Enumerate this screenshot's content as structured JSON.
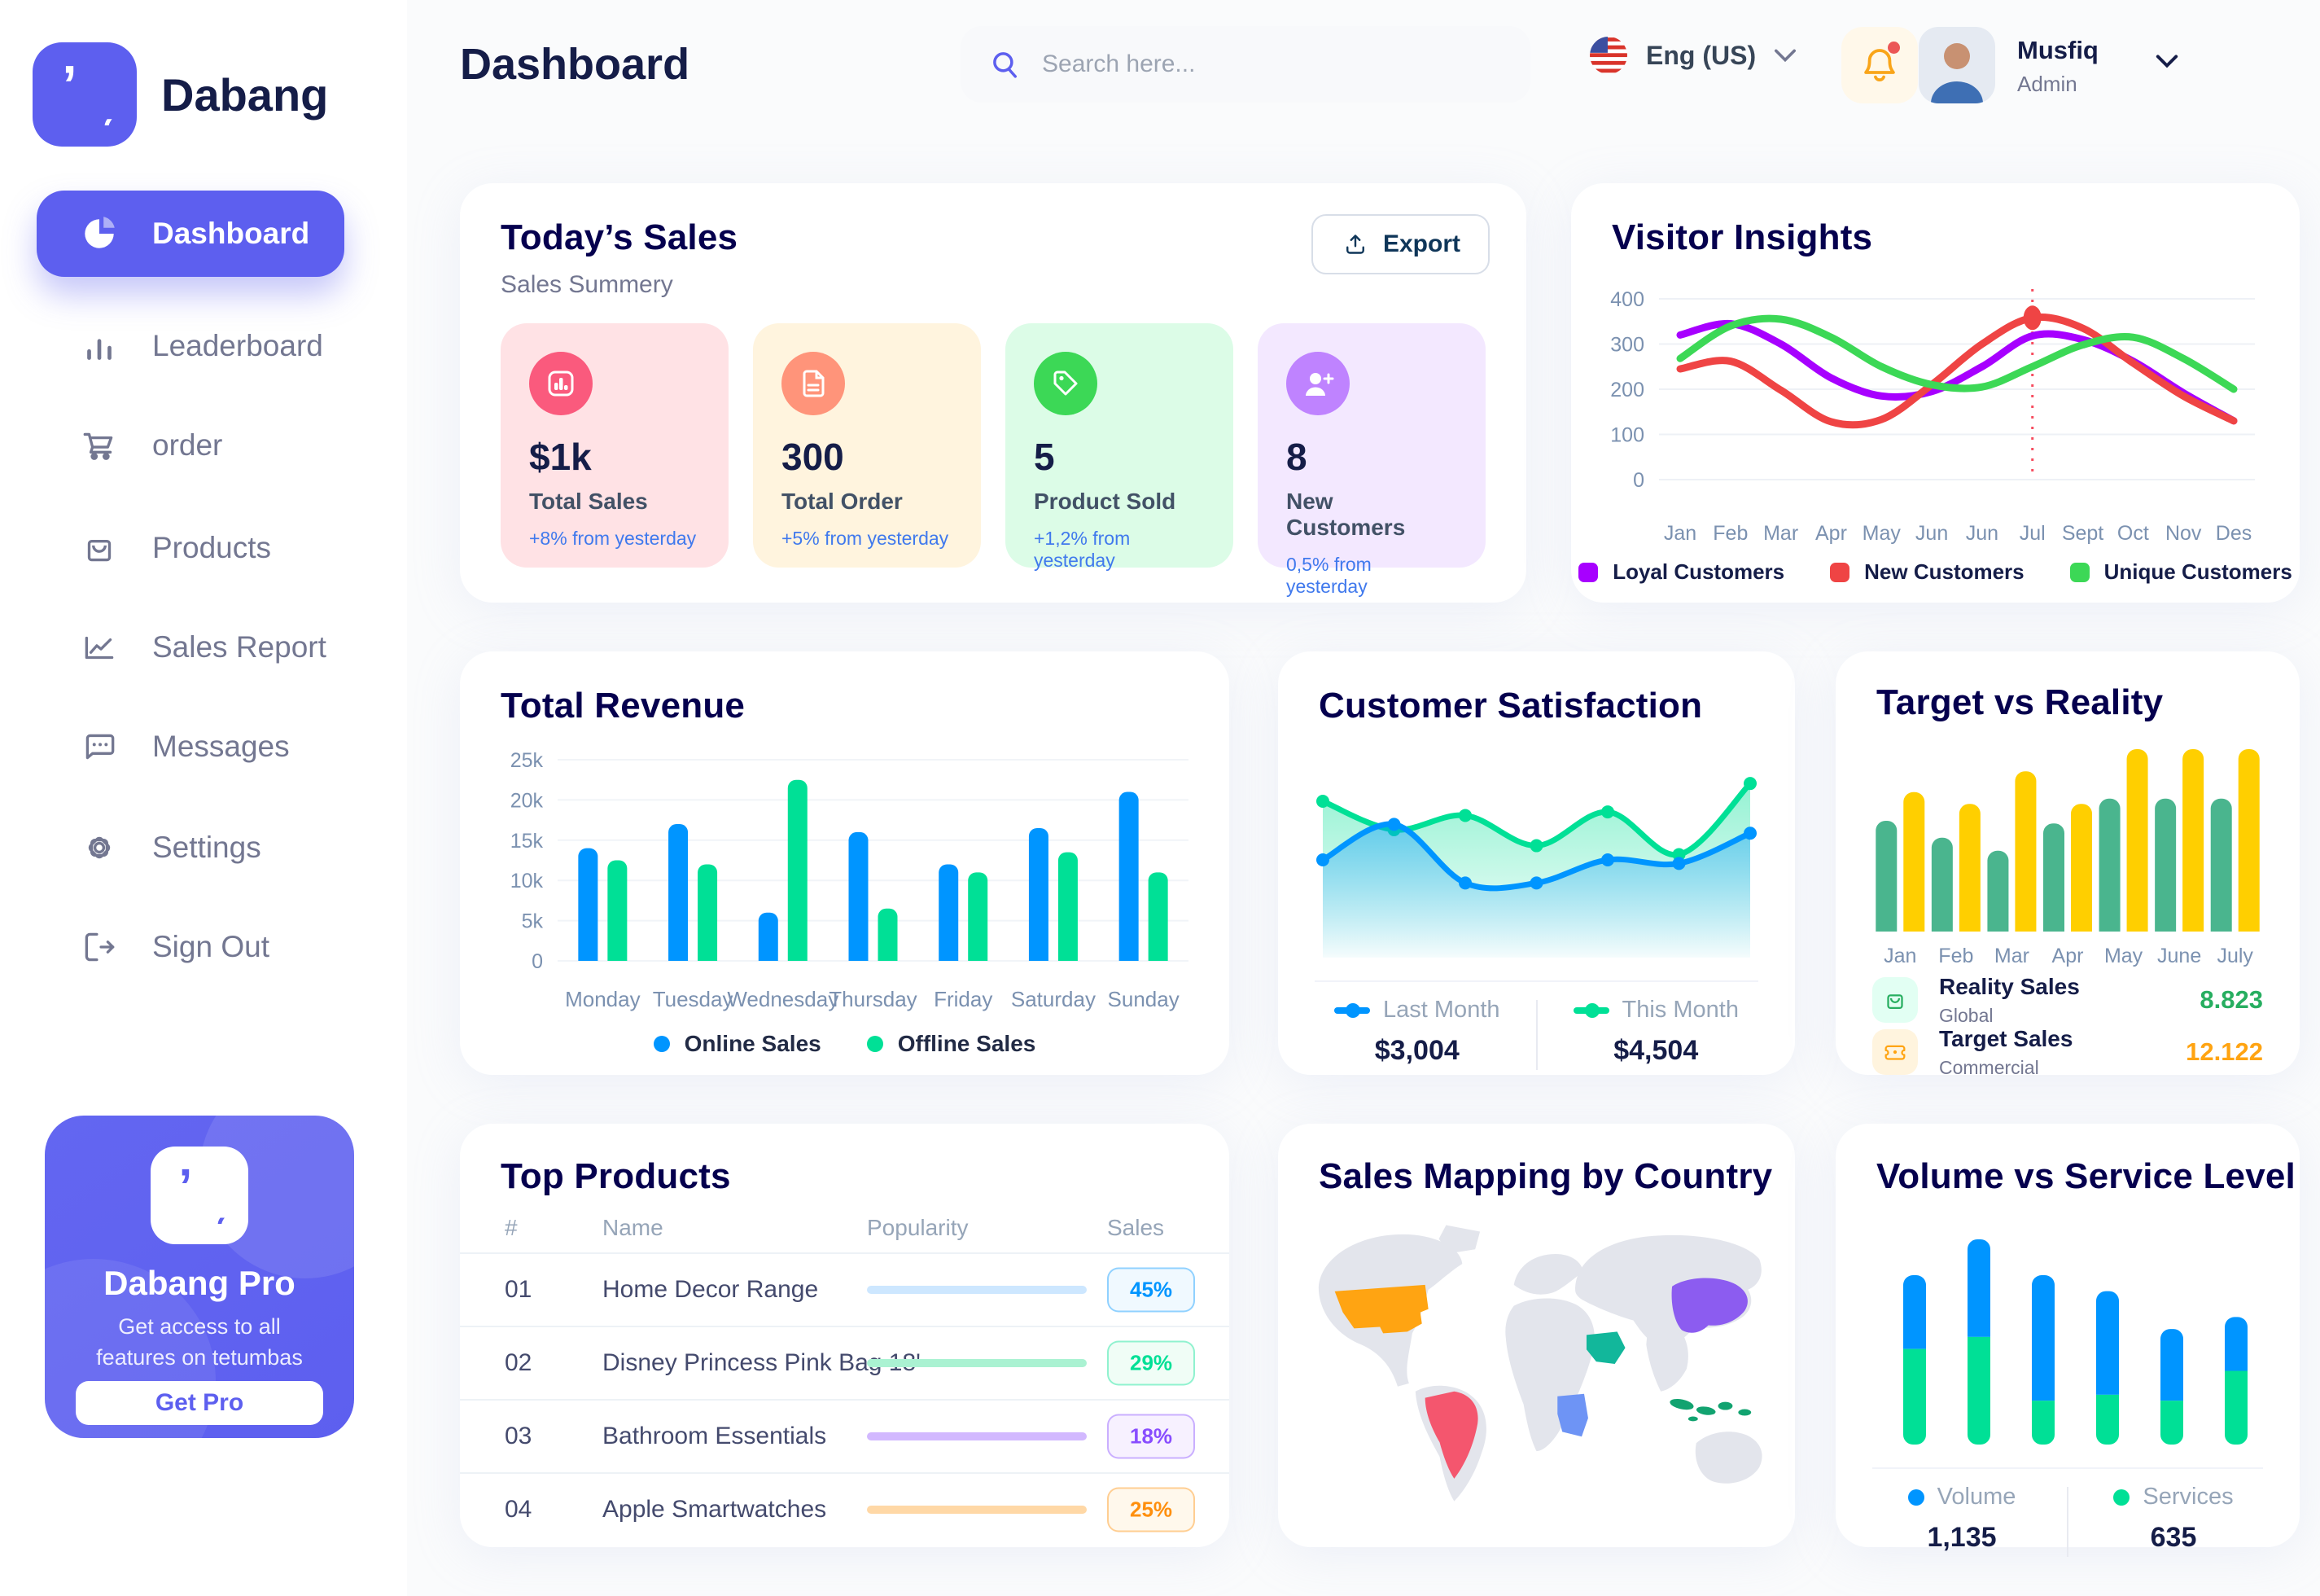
{
  "page": {
    "background": "#FAFBFC",
    "accent_color": "#5D5FEF"
  },
  "sidebar": {
    "logo_text": "Dabang",
    "items": [
      {
        "label": "Dashboard",
        "active": true
      },
      {
        "label": "Leaderboard"
      },
      {
        "label": "order"
      },
      {
        "label": "Products"
      },
      {
        "label": "Sales Report"
      },
      {
        "label": "Messages"
      },
      {
        "label": "Settings"
      },
      {
        "label": "Sign Out"
      }
    ],
    "pro": {
      "title": "Dabang Pro",
      "subtitle": "Get access to all features on tetumbas",
      "button_label": "Get Pro"
    }
  },
  "header": {
    "title": "Dashboard",
    "search_placeholder": "Search here...",
    "language": "Eng (US)",
    "user_name": "Musfiq",
    "user_role": "Admin",
    "bell_color": "#F9A51A",
    "notification_dot_color": "#EB5757"
  },
  "today_sales": {
    "title": "Today’s Sales",
    "subtitle": "Sales Summery",
    "export_label": "Export",
    "stats": [
      {
        "value": "$1k",
        "label": "Total Sales",
        "delta": "+8% from yesterday",
        "bg": "#FFE2E5",
        "icon_bg": "#FA5A7D"
      },
      {
        "value": "300",
        "label": "Total Order",
        "delta": "+5% from yesterday",
        "bg": "#FFF4DE",
        "icon_bg": "#FF947A"
      },
      {
        "value": "5",
        "label": "Product Sold",
        "delta": "+1,2% from yesterday",
        "bg": "#DCFCE7",
        "icon_bg": "#3CD856"
      },
      {
        "value": "8",
        "label": "New Customers",
        "delta": "0,5% from yesterday",
        "bg": "#F3E8FF",
        "icon_bg": "#BF83FF"
      }
    ]
  },
  "chart_data": [
    {
      "id": "visitor_insights",
      "type": "line",
      "title": "Visitor Insights",
      "x": [
        "Jan",
        "Feb",
        "Mar",
        "Apr",
        "May",
        "Jun",
        "Jun",
        "Jul",
        "Sept",
        "Oct",
        "Nov",
        "Des"
      ],
      "ylim": [
        0,
        400
      ],
      "yticks": [
        0,
        100,
        200,
        300,
        400
      ],
      "grid": true,
      "legend_position": "bottom",
      "series": [
        {
          "name": "Loyal Customers",
          "color": "#A700FF",
          "values": [
            320,
            345,
            300,
            225,
            185,
            195,
            250,
            318,
            310,
            262,
            192,
            130
          ]
        },
        {
          "name": "New Customers",
          "color": "#EF4444",
          "values": [
            245,
            262,
            198,
            128,
            133,
            210,
            300,
            358,
            335,
            258,
            185,
            130
          ]
        },
        {
          "name": "Unique Customers",
          "color": "#3CD856",
          "values": [
            268,
            340,
            355,
            315,
            250,
            210,
            205,
            250,
            298,
            315,
            268,
            200
          ]
        }
      ],
      "marker": {
        "series": 1,
        "index": 7,
        "guide_line": "dashed-red"
      }
    },
    {
      "id": "total_revenue",
      "type": "bar",
      "title": "Total Revenue",
      "categories": [
        "Monday",
        "Tuesday",
        "Wednesday",
        "Thursday",
        "Friday",
        "Saturday",
        "Sunday"
      ],
      "ylim": [
        0,
        25
      ],
      "yticks": [
        {
          "v": 0,
          "label": "0"
        },
        {
          "v": 5,
          "label": "5k"
        },
        {
          "v": 10,
          "label": "10k"
        },
        {
          "v": 15,
          "label": "15k"
        },
        {
          "v": 20,
          "label": "20k"
        },
        {
          "v": 25,
          "label": "25k"
        }
      ],
      "grid": true,
      "legend_position": "bottom",
      "series": [
        {
          "name": "Online Sales",
          "color": "#0095FF",
          "values": [
            14,
            17,
            6,
            16,
            12,
            16.5,
            21
          ]
        },
        {
          "name": "Offline Sales",
          "color": "#00E096",
          "values": [
            12.5,
            12,
            22.5,
            6.5,
            11,
            13.5,
            11
          ]
        }
      ]
    },
    {
      "id": "customer_satisfaction",
      "type": "area",
      "title": "Customer Satisfaction",
      "ylim": [
        0,
        110
      ],
      "grid": false,
      "legend_position": "bottom",
      "series": [
        {
          "name": "Last Month",
          "color": "#0095FF",
          "total": "$3,004",
          "values": [
            55,
            75,
            42,
            42,
            55,
            53,
            70
          ]
        },
        {
          "name": "This Month",
          "color": "#00E096",
          "total": "$4,504",
          "values": [
            88,
            72,
            80,
            63,
            82,
            58,
            98
          ]
        }
      ]
    },
    {
      "id": "target_vs_reality",
      "type": "bar",
      "title": "Target vs Reality",
      "categories": [
        "Jan",
        "Feb",
        "Mar",
        "Apr",
        "May",
        "June",
        "July"
      ],
      "ylim": [
        0,
        15
      ],
      "grid": false,
      "series": [
        {
          "name": "Reality Sales",
          "color": "#4AB58E",
          "values": [
            8.5,
            7.2,
            6.2,
            8.3,
            10.2,
            10.2,
            10.2
          ]
        },
        {
          "name": "Target Sales",
          "color": "#FFCF00",
          "values": [
            10.7,
            9.8,
            12.3,
            9.8,
            14,
            14,
            14
          ]
        }
      ],
      "legend_rows": [
        {
          "name": "Reality Sales",
          "sub": "Global",
          "value": "8.823",
          "value_color": "#27AE60",
          "icon_bg": "#E2FFF3",
          "icon_color": "#27AE60"
        },
        {
          "name": "Target Sales",
          "sub": "Commercial",
          "value": "12.122",
          "value_color": "#FFA412",
          "icon_bg": "#FFF4DE",
          "icon_color": "#FFA412"
        }
      ]
    },
    {
      "id": "volume_vs_service",
      "type": "stacked-bar",
      "title": "Volume vs Service Level",
      "legend_position": "bottom",
      "series": [
        {
          "name": "Volume",
          "color": "#0095FF",
          "total": "1,135",
          "values": [
            37,
            49,
            63,
            52,
            36,
            27
          ]
        },
        {
          "name": "Services",
          "color": "#00E096",
          "total": "635",
          "values": [
            48,
            54,
            22,
            25,
            22,
            37
          ]
        }
      ]
    }
  ],
  "top_products": {
    "title": "Top Products",
    "columns": [
      "#",
      "Name",
      "Popularity",
      "Sales"
    ],
    "rows": [
      {
        "num": "01",
        "name": "Home Decor Range",
        "percent": "45%",
        "fill": 78,
        "color": "#0095FF",
        "track": "#CDE7FF",
        "badge_bg": "#F0F9FF"
      },
      {
        "num": "02",
        "name": "Disney Princess Pink Bag 18'",
        "percent": "29%",
        "fill": 62,
        "color": "#00E096",
        "track": "#AAF2D2",
        "badge_bg": "#F0FDF6"
      },
      {
        "num": "03",
        "name": "Bathroom Essentials",
        "percent": "18%",
        "fill": 56,
        "color": "#884DFF",
        "track": "#D2B8FF",
        "badge_bg": "#F7F1FF"
      },
      {
        "num": "04",
        "name": "Apple Smartwatches",
        "percent": "25%",
        "fill": 33,
        "color": "#FF8F0D",
        "track": "#FFD8A6",
        "badge_bg": "#FFF8EC"
      }
    ]
  },
  "sales_map": {
    "title": "Sales Mapping by Country",
    "land_color": "#E3E5EC",
    "countries": [
      {
        "name": "United States",
        "color": "#FFA412"
      },
      {
        "name": "Brazil",
        "color": "#F4566E"
      },
      {
        "name": "Saudi Arabia",
        "color": "#12B79B"
      },
      {
        "name": "DR Congo",
        "color": "#6E94F5"
      },
      {
        "name": "China",
        "color": "#8C5CF0"
      },
      {
        "name": "Indonesia",
        "color": "#12A370"
      }
    ]
  }
}
